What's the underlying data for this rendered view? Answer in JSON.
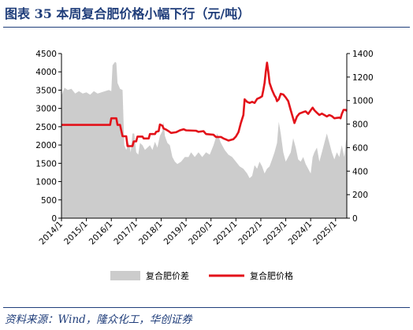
{
  "figure": {
    "title": "图表 35    本周复合肥价格小幅下行（元/吨）",
    "source": "资料来源：Wind，隆众化工，华创证券"
  },
  "chart_data": {
    "type": "area+line",
    "x_ticks": [
      "2014/1",
      "2015/1",
      "2016/1",
      "2017/1",
      "2018/1",
      "2019/1",
      "2020/1",
      "2021/1",
      "2022/1",
      "2023/1",
      "2024/1",
      "2025/1"
    ],
    "x_range": [
      2014.0,
      2025.45
    ],
    "y_left": {
      "ticks": [
        "0",
        "500",
        "1000",
        "1500",
        "2000",
        "2500",
        "3000",
        "3500",
        "4000",
        "4500"
      ],
      "range": [
        0,
        4500
      ]
    },
    "y_right": {
      "ticks": [
        "0",
        "200",
        "400",
        "600",
        "800",
        "1000",
        "1200",
        "1400"
      ],
      "range": [
        0,
        1400
      ]
    },
    "legend": {
      "placement": "bottom"
    },
    "series": [
      {
        "name": "复合肥价差",
        "kind": "area",
        "axis": "right",
        "color": "#cccccc",
        "points": [
          [
            2014.0,
            1040
          ],
          [
            2014.12,
            1110
          ],
          [
            2014.25,
            1090
          ],
          [
            2014.4,
            1100
          ],
          [
            2014.55,
            1060
          ],
          [
            2014.7,
            1080
          ],
          [
            2014.85,
            1060
          ],
          [
            2015.0,
            1070
          ],
          [
            2015.15,
            1050
          ],
          [
            2015.3,
            1080
          ],
          [
            2015.45,
            1060
          ],
          [
            2015.6,
            1070
          ],
          [
            2015.75,
            1080
          ],
          [
            2015.9,
            1090
          ],
          [
            2016.0,
            1080
          ],
          [
            2016.05,
            1300
          ],
          [
            2016.15,
            1330
          ],
          [
            2016.2,
            1320
          ],
          [
            2016.25,
            1150
          ],
          [
            2016.35,
            1100
          ],
          [
            2016.45,
            1090
          ],
          [
            2016.52,
            620
          ],
          [
            2016.6,
            580
          ],
          [
            2016.7,
            640
          ],
          [
            2016.78,
            560
          ],
          [
            2016.85,
            720
          ],
          [
            2016.92,
            720
          ],
          [
            2017.0,
            560
          ],
          [
            2017.08,
            540
          ],
          [
            2017.15,
            640
          ],
          [
            2017.25,
            620
          ],
          [
            2017.35,
            580
          ],
          [
            2017.45,
            600
          ],
          [
            2017.55,
            620
          ],
          [
            2017.65,
            580
          ],
          [
            2017.75,
            650
          ],
          [
            2017.85,
            600
          ],
          [
            2017.95,
            700
          ],
          [
            2018.05,
            740
          ],
          [
            2018.1,
            820
          ],
          [
            2018.15,
            700
          ],
          [
            2018.25,
            640
          ],
          [
            2018.35,
            620
          ],
          [
            2018.45,
            520
          ],
          [
            2018.55,
            480
          ],
          [
            2018.65,
            460
          ],
          [
            2018.8,
            480
          ],
          [
            2018.95,
            520
          ],
          [
            2019.1,
            520
          ],
          [
            2019.2,
            560
          ],
          [
            2019.35,
            520
          ],
          [
            2019.5,
            560
          ],
          [
            2019.65,
            520
          ],
          [
            2019.8,
            560
          ],
          [
            2019.95,
            540
          ],
          [
            2020.1,
            620
          ],
          [
            2020.25,
            720
          ],
          [
            2020.4,
            640
          ],
          [
            2020.55,
            580
          ],
          [
            2020.7,
            540
          ],
          [
            2020.85,
            520
          ],
          [
            2021.0,
            480
          ],
          [
            2021.15,
            440
          ],
          [
            2021.3,
            420
          ],
          [
            2021.45,
            380
          ],
          [
            2021.55,
            340
          ],
          [
            2021.65,
            360
          ],
          [
            2021.75,
            450
          ],
          [
            2021.85,
            420
          ],
          [
            2021.95,
            480
          ],
          [
            2022.05,
            440
          ],
          [
            2022.15,
            380
          ],
          [
            2022.25,
            420
          ],
          [
            2022.35,
            440
          ],
          [
            2022.45,
            500
          ],
          [
            2022.55,
            560
          ],
          [
            2022.65,
            640
          ],
          [
            2022.72,
            820
          ],
          [
            2022.8,
            720
          ],
          [
            2022.9,
            560
          ],
          [
            2023.0,
            480
          ],
          [
            2023.1,
            520
          ],
          [
            2023.2,
            560
          ],
          [
            2023.3,
            680
          ],
          [
            2023.4,
            600
          ],
          [
            2023.5,
            500
          ],
          [
            2023.6,
            480
          ],
          [
            2023.7,
            520
          ],
          [
            2023.8,
            460
          ],
          [
            2023.9,
            420
          ],
          [
            2024.0,
            380
          ],
          [
            2024.08,
            520
          ],
          [
            2024.15,
            560
          ],
          [
            2024.25,
            600
          ],
          [
            2024.35,
            480
          ],
          [
            2024.45,
            560
          ],
          [
            2024.55,
            640
          ],
          [
            2024.65,
            720
          ],
          [
            2024.75,
            640
          ],
          [
            2024.85,
            560
          ],
          [
            2024.95,
            500
          ],
          [
            2025.05,
            560
          ],
          [
            2025.15,
            520
          ],
          [
            2025.25,
            620
          ],
          [
            2025.35,
            520
          ],
          [
            2025.42,
            660
          ],
          [
            2025.45,
            680
          ]
        ]
      },
      {
        "name": "复合肥价格",
        "kind": "line",
        "axis": "left",
        "color": "#e3121a",
        "points": [
          [
            2014.0,
            2550
          ],
          [
            2015.0,
            2550
          ],
          [
            2015.95,
            2550
          ],
          [
            2016.0,
            2730
          ],
          [
            2016.2,
            2730
          ],
          [
            2016.25,
            2550
          ],
          [
            2016.35,
            2550
          ],
          [
            2016.45,
            2240
          ],
          [
            2016.6,
            2240
          ],
          [
            2016.65,
            1970
          ],
          [
            2016.85,
            1970
          ],
          [
            2016.9,
            2100
          ],
          [
            2017.0,
            2100
          ],
          [
            2017.05,
            2230
          ],
          [
            2017.25,
            2230
          ],
          [
            2017.3,
            2180
          ],
          [
            2017.5,
            2180
          ],
          [
            2017.55,
            2300
          ],
          [
            2017.75,
            2300
          ],
          [
            2017.8,
            2360
          ],
          [
            2017.9,
            2380
          ],
          [
            2017.95,
            2560
          ],
          [
            2018.05,
            2530
          ],
          [
            2018.1,
            2450
          ],
          [
            2018.2,
            2420
          ],
          [
            2018.3,
            2380
          ],
          [
            2018.4,
            2330
          ],
          [
            2018.6,
            2350
          ],
          [
            2018.75,
            2400
          ],
          [
            2018.9,
            2430
          ],
          [
            2019.0,
            2400
          ],
          [
            2019.4,
            2390
          ],
          [
            2019.5,
            2360
          ],
          [
            2019.7,
            2380
          ],
          [
            2019.8,
            2300
          ],
          [
            2020.1,
            2280
          ],
          [
            2020.2,
            2220
          ],
          [
            2020.4,
            2220
          ],
          [
            2020.5,
            2180
          ],
          [
            2020.6,
            2150
          ],
          [
            2020.7,
            2120
          ],
          [
            2020.9,
            2160
          ],
          [
            2021.0,
            2230
          ],
          [
            2021.1,
            2350
          ],
          [
            2021.2,
            2600
          ],
          [
            2021.3,
            2820
          ],
          [
            2021.35,
            3250
          ],
          [
            2021.45,
            3180
          ],
          [
            2021.55,
            3150
          ],
          [
            2021.65,
            3180
          ],
          [
            2021.75,
            3150
          ],
          [
            2021.85,
            3260
          ],
          [
            2021.95,
            3290
          ],
          [
            2022.05,
            3330
          ],
          [
            2022.1,
            3500
          ],
          [
            2022.15,
            3700
          ],
          [
            2022.2,
            4000
          ],
          [
            2022.25,
            4250
          ],
          [
            2022.3,
            4000
          ],
          [
            2022.35,
            3700
          ],
          [
            2022.45,
            3500
          ],
          [
            2022.55,
            3350
          ],
          [
            2022.6,
            3300
          ],
          [
            2022.65,
            3200
          ],
          [
            2022.72,
            3250
          ],
          [
            2022.8,
            3400
          ],
          [
            2022.9,
            3380
          ],
          [
            2023.0,
            3300
          ],
          [
            2023.1,
            3200
          ],
          [
            2023.2,
            2950
          ],
          [
            2023.3,
            2720
          ],
          [
            2023.35,
            2600
          ],
          [
            2023.45,
            2780
          ],
          [
            2023.55,
            2860
          ],
          [
            2023.7,
            2900
          ],
          [
            2023.8,
            2920
          ],
          [
            2023.9,
            2850
          ],
          [
            2024.0,
            2950
          ],
          [
            2024.08,
            3020
          ],
          [
            2024.15,
            2950
          ],
          [
            2024.25,
            2880
          ],
          [
            2024.35,
            2820
          ],
          [
            2024.45,
            2860
          ],
          [
            2024.55,
            2820
          ],
          [
            2024.65,
            2780
          ],
          [
            2024.75,
            2820
          ],
          [
            2024.85,
            2790
          ],
          [
            2024.95,
            2730
          ],
          [
            2025.05,
            2740
          ],
          [
            2025.15,
            2750
          ],
          [
            2025.2,
            2730
          ],
          [
            2025.25,
            2850
          ],
          [
            2025.32,
            2960
          ],
          [
            2025.4,
            2960
          ],
          [
            2025.45,
            2930
          ]
        ]
      }
    ]
  }
}
